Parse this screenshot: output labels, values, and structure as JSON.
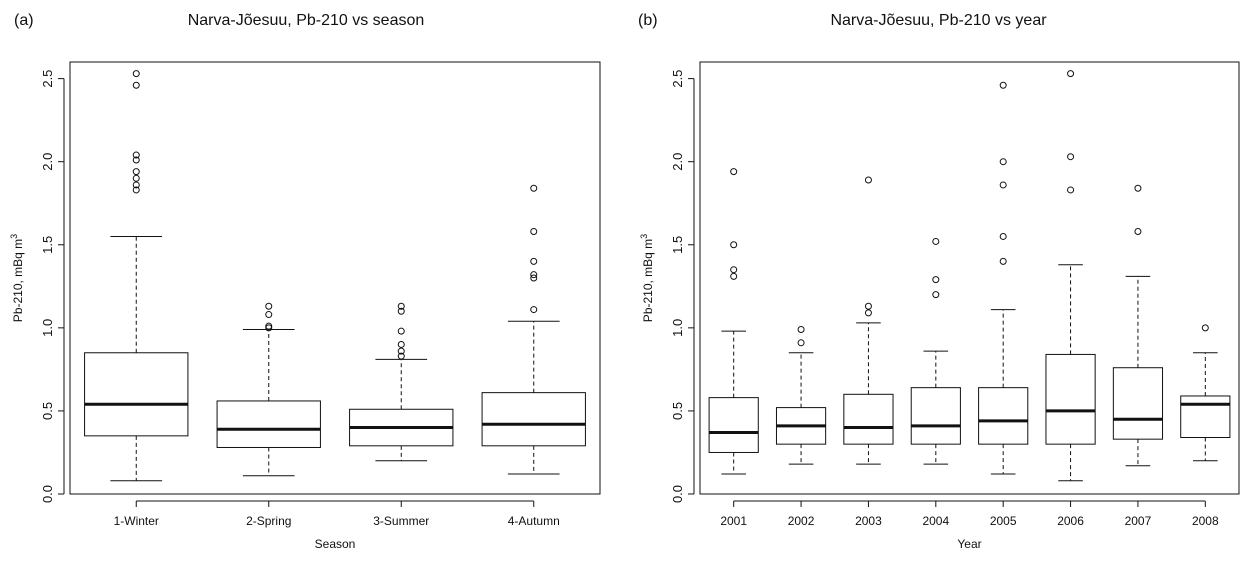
{
  "charts": [
    {
      "panel_label": "(a)",
      "chart_data": {
        "type": "boxplot",
        "title": "Narva-Jõesuu, Pb-210 vs season",
        "xlabel": "Season",
        "ylabel": "Pb-210, mBq m",
        "ylabel_superscript": "3",
        "ylim": [
          0,
          2.6
        ],
        "yticks": [
          "0.0",
          "0.5",
          "1.0",
          "1.5",
          "2.0",
          "2.5"
        ],
        "categories": [
          "1-Winter",
          "2-Spring",
          "3-Summer",
          "4-Autumn"
        ],
        "boxes": [
          {
            "min": 0.08,
            "q1": 0.35,
            "median": 0.54,
            "q3": 0.85,
            "max": 1.55,
            "outliers": [
              1.83,
              1.86,
              1.9,
              1.94,
              2.01,
              2.04,
              2.46,
              2.53
            ]
          },
          {
            "min": 0.11,
            "q1": 0.28,
            "median": 0.39,
            "q3": 0.56,
            "max": 0.99,
            "outliers": [
              1.0,
              1.01,
              1.08,
              1.13
            ]
          },
          {
            "min": 0.2,
            "q1": 0.29,
            "median": 0.4,
            "q3": 0.51,
            "max": 0.81,
            "outliers": [
              0.83,
              0.86,
              0.9,
              0.98,
              1.1,
              1.13
            ]
          },
          {
            "min": 0.12,
            "q1": 0.29,
            "median": 0.42,
            "q3": 0.61,
            "max": 1.04,
            "outliers": [
              1.11,
              1.3,
              1.32,
              1.4,
              1.58,
              1.84
            ]
          }
        ]
      }
    },
    {
      "panel_label": "(b)",
      "chart_data": {
        "type": "boxplot",
        "title": "Narva-Jõesuu, Pb-210 vs year",
        "xlabel": "Year",
        "ylabel": "Pb-210, mBq m",
        "ylabel_superscript": "3",
        "ylim": [
          0,
          2.6
        ],
        "yticks": [
          "0.0",
          "0.5",
          "1.0",
          "1.5",
          "2.0",
          "2.5"
        ],
        "categories": [
          "2001",
          "2002",
          "2003",
          "2004",
          "2005",
          "2006",
          "2007",
          "2008"
        ],
        "boxes": [
          {
            "min": 0.12,
            "q1": 0.25,
            "median": 0.37,
            "q3": 0.58,
            "max": 0.98,
            "outliers": [
              1.31,
              1.35,
              1.5,
              1.94
            ]
          },
          {
            "min": 0.18,
            "q1": 0.3,
            "median": 0.41,
            "q3": 0.52,
            "max": 0.85,
            "outliers": [
              0.91,
              0.99
            ]
          },
          {
            "min": 0.18,
            "q1": 0.3,
            "median": 0.4,
            "q3": 0.6,
            "max": 1.03,
            "outliers": [
              1.09,
              1.13,
              1.89
            ]
          },
          {
            "min": 0.18,
            "q1": 0.3,
            "median": 0.41,
            "q3": 0.64,
            "max": 0.86,
            "outliers": [
              1.2,
              1.29,
              1.52
            ]
          },
          {
            "min": 0.12,
            "q1": 0.3,
            "median": 0.44,
            "q3": 0.64,
            "max": 1.11,
            "outliers": [
              1.4,
              1.55,
              1.86,
              2.0,
              2.46
            ]
          },
          {
            "min": 0.08,
            "q1": 0.3,
            "median": 0.5,
            "q3": 0.84,
            "max": 1.38,
            "outliers": [
              1.83,
              2.03,
              2.53
            ]
          },
          {
            "min": 0.17,
            "q1": 0.33,
            "median": 0.45,
            "q3": 0.76,
            "max": 1.31,
            "outliers": [
              1.58,
              1.84
            ]
          },
          {
            "min": 0.2,
            "q1": 0.34,
            "median": 0.54,
            "q3": 0.59,
            "max": 0.85,
            "outliers": [
              1.0
            ]
          }
        ]
      }
    }
  ]
}
